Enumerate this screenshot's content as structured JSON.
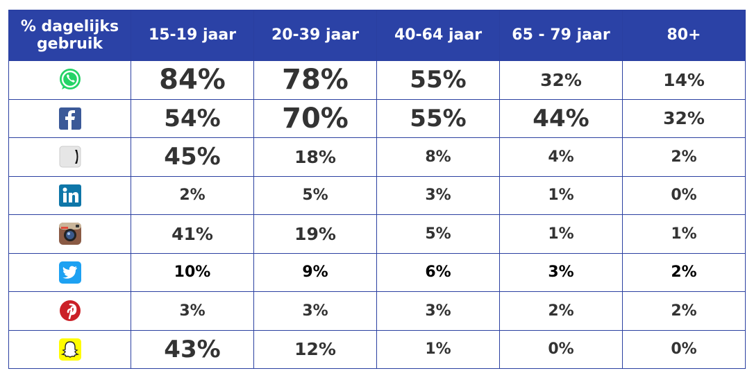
{
  "chart_data": {
    "type": "table",
    "title": "% dagelijks gebruik",
    "columns": [
      "15-19 jaar",
      "20-39 jaar",
      "40-64 jaar",
      "65 - 79 jaar",
      "80+"
    ],
    "rows": [
      {
        "platform": "whatsapp",
        "icon": "whatsapp-icon",
        "color": "#25d366",
        "values": [
          "84%",
          "78%",
          "55%",
          "32%",
          "14%"
        ],
        "sizes": [
          "xl",
          "xl",
          "l",
          "m",
          "m"
        ]
      },
      {
        "platform": "facebook",
        "icon": "facebook-icon",
        "color": "#3b5998",
        "values": [
          "54%",
          "70%",
          "55%",
          "44%",
          "32%"
        ],
        "sizes": [
          "l",
          "xl",
          "l",
          "l",
          "m"
        ]
      },
      {
        "platform": "unknown",
        "icon": "generic-app-icon",
        "color": "#e6e6e6",
        "values": [
          "45%",
          "18%",
          "8%",
          "4%",
          "2%"
        ],
        "sizes": [
          "l",
          "m",
          "s",
          "s",
          "s"
        ]
      },
      {
        "platform": "linkedin",
        "icon": "linkedin-icon",
        "color": "#0e76a8",
        "values": [
          "2%",
          "5%",
          "3%",
          "1%",
          "0%"
        ],
        "sizes": [
          "s",
          "s",
          "s",
          "s",
          "s"
        ]
      },
      {
        "platform": "instagram",
        "icon": "instagram-icon",
        "color": "#8a5a44",
        "values": [
          "41%",
          "19%",
          "5%",
          "1%",
          "1%"
        ],
        "sizes": [
          "m",
          "m",
          "s",
          "s",
          "s"
        ]
      },
      {
        "platform": "twitter",
        "icon": "twitter-icon",
        "color": "#1da1f2",
        "values": [
          "10%",
          "9%",
          "6%",
          "3%",
          "2%"
        ],
        "sizes": [
          "s",
          "s",
          "s",
          "s",
          "s"
        ]
      },
      {
        "platform": "pinterest",
        "icon": "pinterest-icon",
        "color": "#cb2027",
        "values": [
          "3%",
          "3%",
          "3%",
          "2%",
          "2%"
        ],
        "sizes": [
          "s",
          "s",
          "s",
          "s",
          "s"
        ]
      },
      {
        "platform": "snapchat",
        "icon": "snapchat-icon",
        "color": "#fffc00",
        "values": [
          "43%",
          "12%",
          "1%",
          "0%",
          "0%"
        ],
        "sizes": [
          "l",
          "m",
          "s",
          "s",
          "s"
        ]
      }
    ]
  },
  "header": {
    "corner_line1": "% dagelijks",
    "corner_line2": "gebruik"
  },
  "colors": {
    "header_bg": "#2b42a6",
    "border": "#2a3fa0",
    "text": "#333333"
  }
}
